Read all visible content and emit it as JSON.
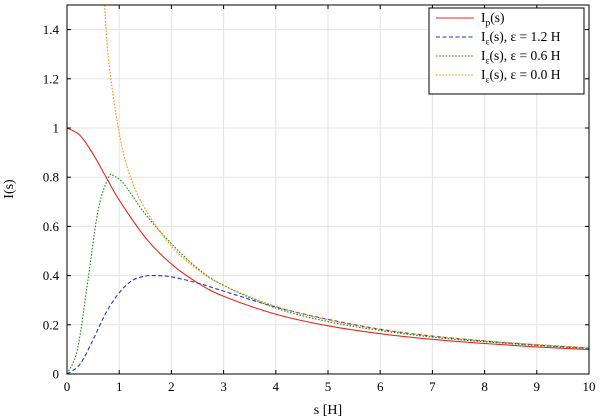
{
  "chart_data": {
    "type": "line",
    "xlabel": "s [H]",
    "ylabel": "I(s)",
    "xlim": [
      0,
      10
    ],
    "ylim": [
      0,
      1.5
    ],
    "xticks": [
      "0",
      "1",
      "2",
      "3",
      "4",
      "5",
      "6",
      "7",
      "8",
      "9",
      "10"
    ],
    "yticks": [
      "0",
      "0.2",
      "0.4",
      "0.6",
      "0.8",
      "1",
      "1.2",
      "1.4"
    ],
    "grid": true,
    "legend_position": "top-right",
    "series": [
      {
        "name": "Ip(s)",
        "legend": {
          "base": "I",
          "sub": "p",
          "rest": "(s)"
        },
        "color": "#e8281e",
        "style": "solid",
        "x": [
          0,
          0.25,
          0.5,
          0.75,
          1,
          1.5,
          2,
          2.5,
          3,
          4,
          5,
          6,
          7,
          8,
          9,
          10
        ],
        "y": [
          1.0,
          0.97,
          0.894,
          0.8,
          0.707,
          0.555,
          0.447,
          0.371,
          0.316,
          0.243,
          0.196,
          0.164,
          0.141,
          0.124,
          0.11,
          0.0995
        ]
      },
      {
        "name": "Iε(s), ε = 1.2 H",
        "legend": {
          "base": "I",
          "sub": "ε",
          "rest": "(s), ε = 1.2 H"
        },
        "color": "#2233cc",
        "style": "dashed",
        "x": [
          0,
          0.25,
          0.5,
          0.75,
          1,
          1.25,
          1.5,
          1.7,
          2,
          2.5,
          3,
          4,
          5,
          6,
          7,
          8,
          9,
          10
        ],
        "y": [
          0.0,
          0.04,
          0.14,
          0.25,
          0.33,
          0.38,
          0.398,
          0.4,
          0.395,
          0.37,
          0.337,
          0.272,
          0.222,
          0.182,
          0.154,
          0.134,
          0.118,
          0.105
        ]
      },
      {
        "name": "Iε(s), ε = 0.6 H",
        "legend": {
          "base": "I",
          "sub": "ε",
          "rest": "(s), ε = 0.6 H"
        },
        "color": "#1a8a1a",
        "style": "dotted",
        "x": [
          0,
          0.2,
          0.4,
          0.6,
          0.8,
          0.9,
          1.1,
          1.5,
          2,
          2.5,
          3,
          4,
          5,
          6,
          7,
          8,
          9,
          10
        ],
        "y": [
          0.0,
          0.1,
          0.38,
          0.67,
          0.8,
          0.805,
          0.77,
          0.65,
          0.53,
          0.43,
          0.36,
          0.268,
          0.213,
          0.177,
          0.15,
          0.131,
          0.116,
          0.104
        ]
      },
      {
        "name": "Iε(s), ε = 0.0 H",
        "legend": {
          "base": "I",
          "sub": "ε",
          "rest": "(s), ε = 0.0 H"
        },
        "color": "#ff8c00",
        "style": "dotted",
        "x": [
          0.72,
          0.8,
          1,
          1.2,
          1.5,
          2,
          2.5,
          3,
          4,
          5,
          6,
          7,
          8,
          9,
          10
        ],
        "y": [
          1.5,
          1.27,
          0.98,
          0.81,
          0.67,
          0.52,
          0.425,
          0.36,
          0.275,
          0.22,
          0.182,
          0.155,
          0.135,
          0.12,
          0.107
        ]
      }
    ]
  }
}
